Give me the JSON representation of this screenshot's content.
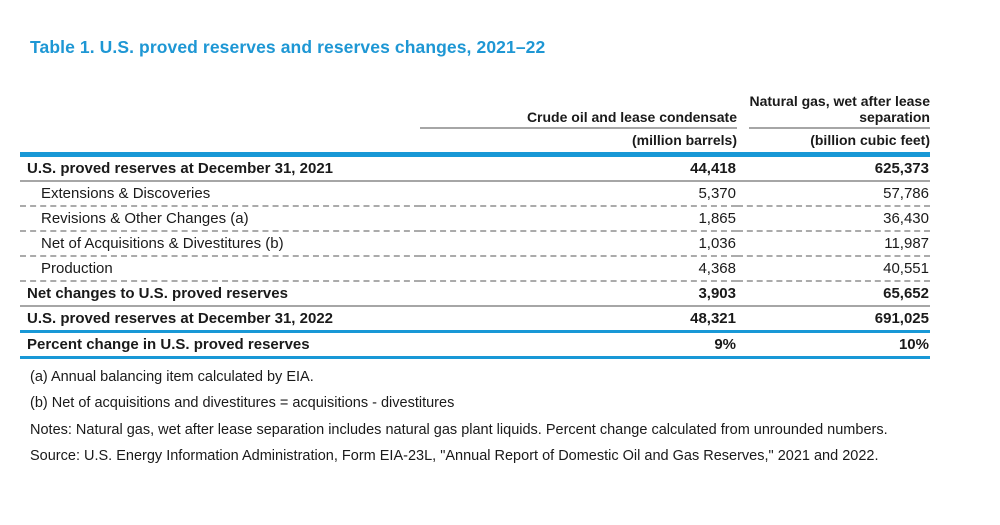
{
  "title": "Table 1. U.S. proved reserves and reserves changes, 2021–22",
  "colors": {
    "accent_blue": "#1898d6",
    "title_blue": "#1e97d4",
    "line_gray": "#a6a6a6",
    "text": "#1a1a1a"
  },
  "table": {
    "column_groups": [
      {
        "label": "Crude oil and lease condensate",
        "unit": "(million barrels)"
      },
      {
        "label": "Natural gas, wet after lease separation",
        "unit": "(billion cubic feet)"
      }
    ],
    "rows": [
      {
        "label": "U.S. proved reserves at December 31, 2021",
        "oil": "44,418",
        "gas": "625,373"
      },
      {
        "label": "Extensions & Discoveries",
        "oil": "5,370",
        "gas": "57,786"
      },
      {
        "label": "Revisions & Other Changes (a)",
        "oil": "1,865",
        "gas": "36,430"
      },
      {
        "label": "Net of Acquisitions & Divestitures (b)",
        "oil": "1,036",
        "gas": "11,987"
      },
      {
        "label": "Production",
        "oil": "4,368",
        "gas": "40,551"
      },
      {
        "label": "Net changes to U.S. proved reserves",
        "oil": "3,903",
        "gas": "65,652"
      },
      {
        "label": "U.S. proved reserves at December 31, 2022",
        "oil": "48,321",
        "gas": "691,025"
      },
      {
        "label": "Percent change in U.S. proved reserves",
        "oil": "9%",
        "gas": "10%"
      }
    ]
  },
  "footnotes": [
    "(a) Annual balancing item calculated by EIA.",
    "(b) Net of acquisitions and divestitures = acquisitions - divestitures",
    "Notes: Natural gas, wet after lease separation includes natural gas plant liquids. Percent change calculated from unrounded numbers.",
    "Source: U.S. Energy Information Administration, Form EIA-23L, \"Annual Report of Domestic Oil and Gas Reserves,\" 2021 and 2022."
  ]
}
